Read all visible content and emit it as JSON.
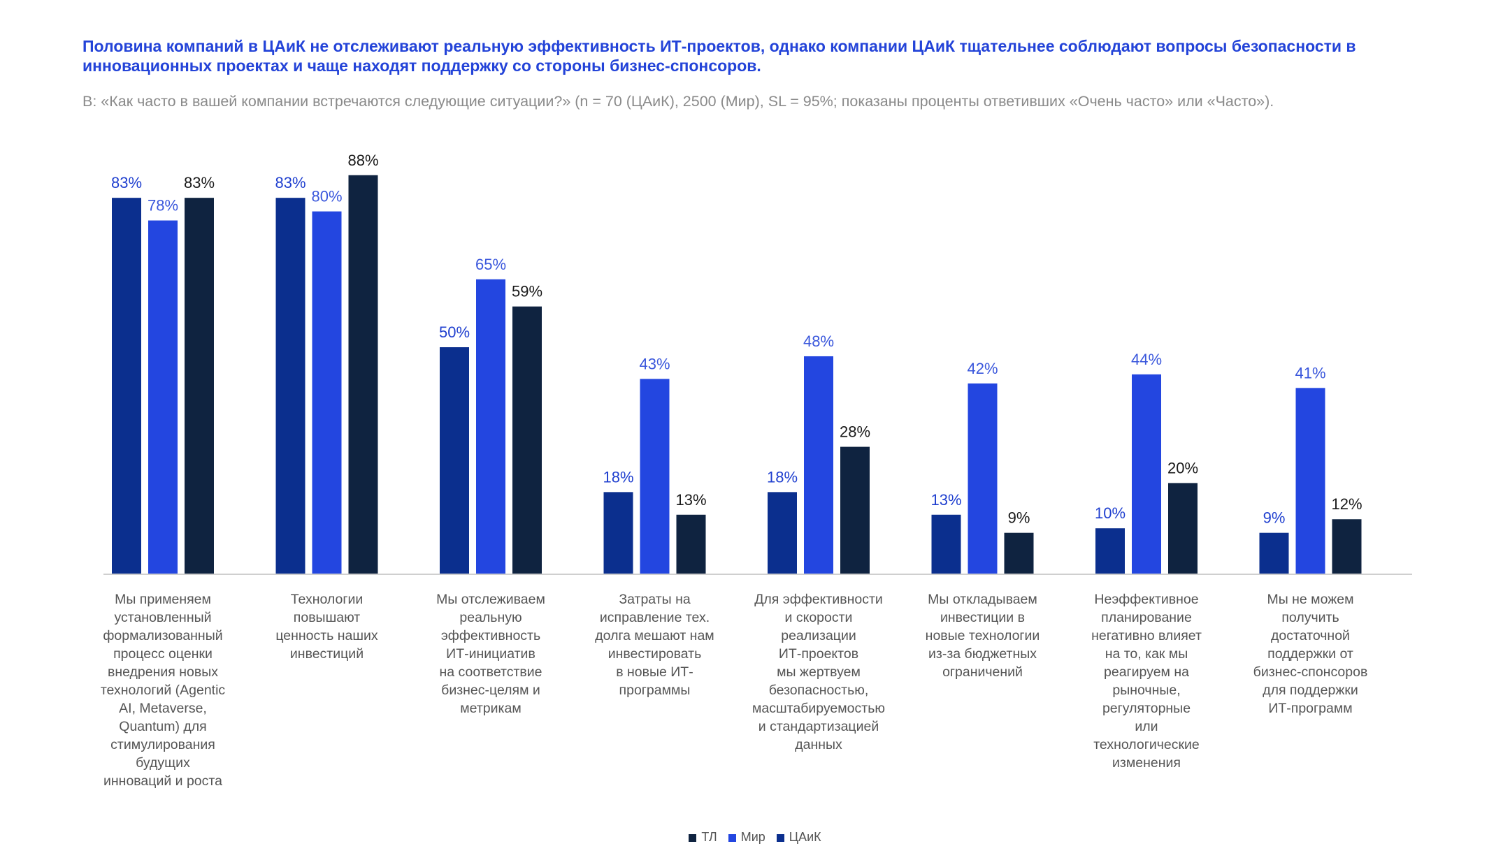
{
  "header": {
    "title": "Половина компаний в ЦАиК не отслеживают реальную эффективность ИТ-проектов, однако компании ЦАиК тщательнее соблюдают вопросы безопасности в инновационных проектах и чаще находят поддержку со стороны бизнес-спонсоров.",
    "subtitle": "В: «Как часто в вашей компании встречаются следующие ситуации?» (n = 70 (ЦАиК), 2500 (Мир), SL = 95%; показаны проценты ответивших «Очень часто» или «Часто»)."
  },
  "chart_data": {
    "type": "bar",
    "categories": [
      [
        "Мы применяем",
        "установленный",
        "формализованный",
        "процесс оценки",
        "внедрения новых",
        "технологий (Agentic",
        "AI, Metaverse,",
        "Quantum) для",
        "стимулирования",
        "будущих",
        "инноваций и роста"
      ],
      [
        "Технологии",
        "повышают",
        "ценность наших",
        "инвестиций"
      ],
      [
        "Мы отслеживаем",
        "реальную",
        "эффективность",
        "ИТ-инициатив",
        "на соответствие",
        "бизнес-целям и",
        "метрикам"
      ],
      [
        "Затраты на",
        "исправление тех.",
        "долга мешают нам",
        "инвестировать",
        "в новые ИТ-",
        "программы"
      ],
      [
        "Для эффективности",
        "и скорости",
        "реализации",
        "ИТ-проектов",
        "мы жертвуем",
        "безопасностью,",
        "масштабируемостью",
        "и стандартизацией",
        "данных"
      ],
      [
        "Мы откладываем",
        "инвестиции в",
        "новые технологии",
        "из-за бюджетных",
        "ограничений"
      ],
      [
        "Неэффективное",
        "планирование",
        "негативно влияет",
        "на то, как мы",
        "реагируем на",
        "рыночные,",
        "регуляторные",
        "или",
        "технологические",
        "изменения"
      ],
      [
        "Мы не можем",
        "получить",
        "достаточной",
        "поддержки от",
        "бизнес-спонсоров",
        "для поддержки",
        "ИТ-программ"
      ]
    ],
    "series": [
      {
        "name": "ЦАиК",
        "color": "#0b2f8e",
        "label_color": "#1f3fcf",
        "values": [
          83,
          83,
          50,
          18,
          18,
          13,
          10,
          9
        ],
        "labels": [
          "83%",
          "83%",
          "50%",
          "18%",
          "18%",
          "13%",
          "10%",
          "9%"
        ]
      },
      {
        "name": "Мир",
        "color": "#2346e0",
        "label_color": "#3a57dc",
        "values": [
          78,
          80,
          65,
          43,
          48,
          42,
          44,
          41
        ],
        "labels": [
          "78%",
          "80%",
          "65%",
          "43%",
          "48%",
          "42%",
          "44%",
          "41%"
        ]
      },
      {
        "name": "ТЛ",
        "color": "#0f2340",
        "label_color": "#1a1a1a",
        "values": [
          83,
          88,
          59,
          13,
          28,
          9,
          20,
          12
        ],
        "labels": [
          "83%",
          "88%",
          "59%",
          "13%",
          "28%",
          "9%",
          "20%",
          "12%"
        ]
      }
    ],
    "ylim": [
      0,
      100
    ],
    "grid": false,
    "legend": {
      "placement": "bottom-center",
      "order": [
        "ТЛ",
        "Мир",
        "ЦАиК"
      ]
    }
  }
}
